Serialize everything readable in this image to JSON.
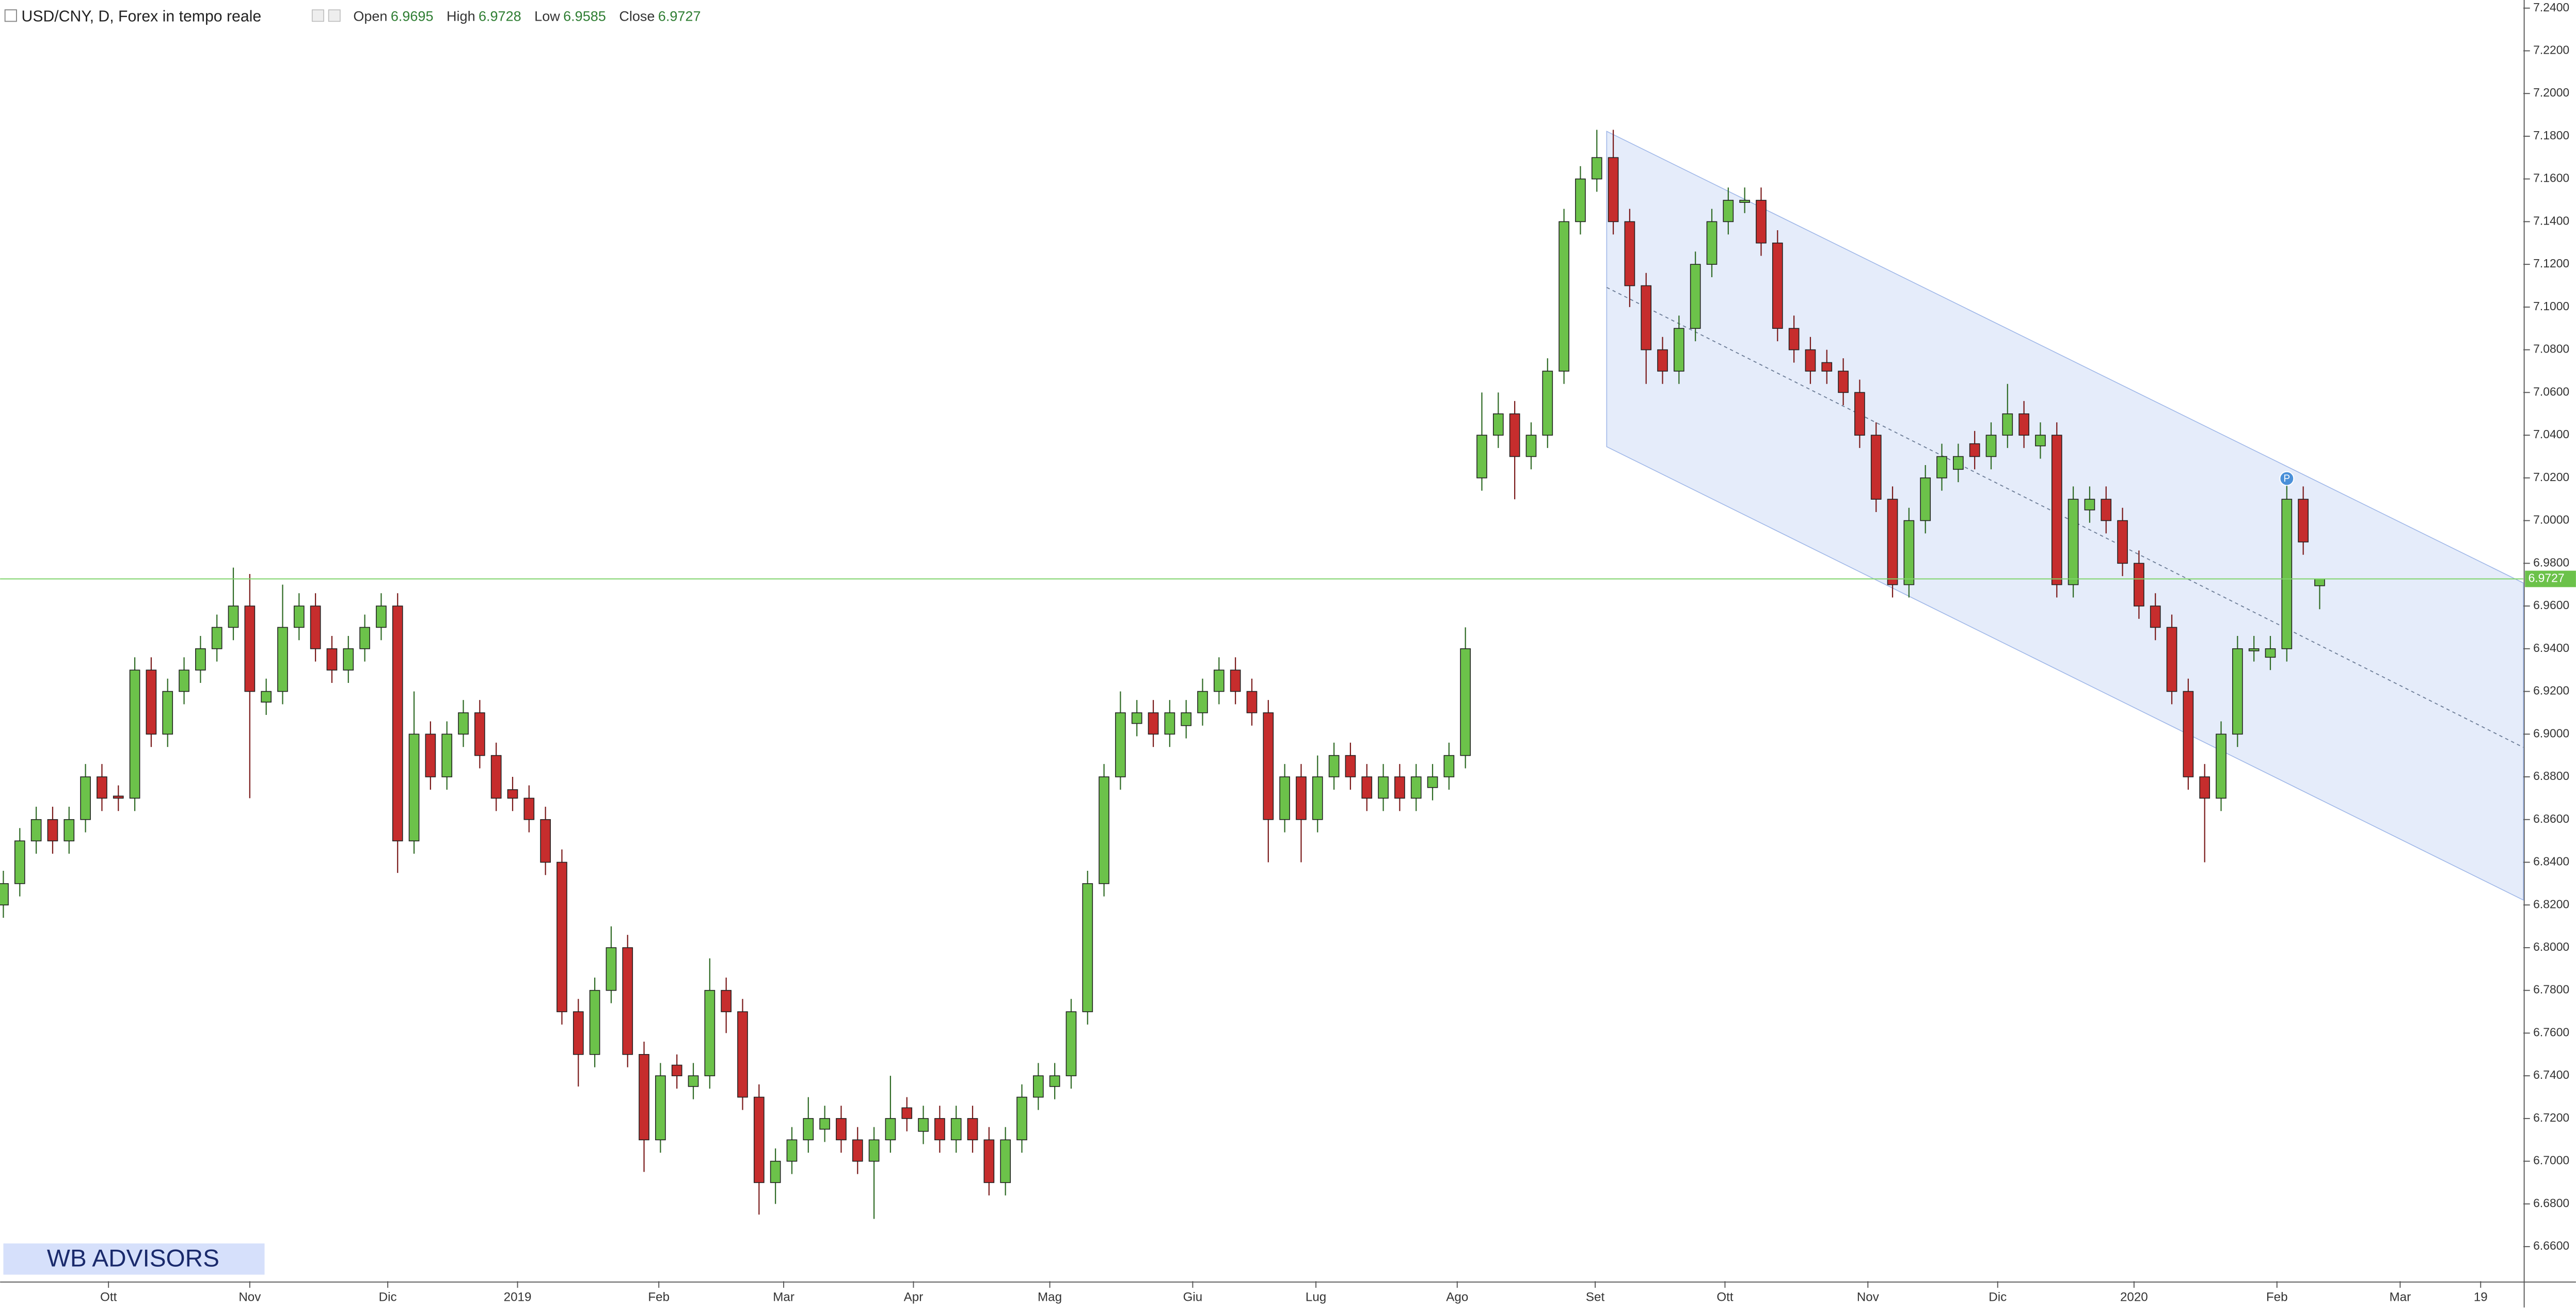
{
  "chart_data": {
    "type": "candlestick",
    "title": "USD/CNY, D, Forex in tempo reale",
    "ohlc_labels": [
      "Open",
      "High",
      "Low",
      "Close"
    ],
    "up_color": "#6cc24a",
    "down_color": "#c62d2d",
    "xlim": [
      -0.2,
      153.4
    ],
    "ylim": [
      6.6438,
      7.2438
    ],
    "xticks": [
      {
        "value": 6.4,
        "label": "Ott"
      },
      {
        "value": 15,
        "label": "Nov"
      },
      {
        "value": 23.4,
        "label": "Dic"
      },
      {
        "value": 31.3,
        "label": "2019"
      },
      {
        "value": 39.9,
        "label": "Feb"
      },
      {
        "value": 47.5,
        "label": "Mar"
      },
      {
        "value": 55.4,
        "label": "Apr"
      },
      {
        "value": 63.7,
        "label": "Mag"
      },
      {
        "value": 72.4,
        "label": "Giu"
      },
      {
        "value": 79.9,
        "label": "Lug"
      },
      {
        "value": 88.5,
        "label": "Ago"
      },
      {
        "value": 96.9,
        "label": "Set"
      },
      {
        "value": 104.8,
        "label": "Ott"
      },
      {
        "value": 113.5,
        "label": "Nov"
      },
      {
        "value": 121.4,
        "label": "Dic"
      },
      {
        "value": 129.7,
        "label": "2020"
      },
      {
        "value": 138.4,
        "label": "Feb"
      },
      {
        "value": 145.9,
        "label": "Mar"
      },
      {
        "value": 150.8,
        "label": "19"
      }
    ],
    "yticks": [
      {
        "value": 6.66,
        "label": "6.6600"
      },
      {
        "value": 6.68,
        "label": "6.6800"
      },
      {
        "value": 6.7,
        "label": "6.7000"
      },
      {
        "value": 6.72,
        "label": "6.7200"
      },
      {
        "value": 6.74,
        "label": "6.7400"
      },
      {
        "value": 6.76,
        "label": "6.7600"
      },
      {
        "value": 6.78,
        "label": "6.7800"
      },
      {
        "value": 6.8,
        "label": "6.8000"
      },
      {
        "value": 6.82,
        "label": "6.8200"
      },
      {
        "value": 6.84,
        "label": "6.8400"
      },
      {
        "value": 6.86,
        "label": "6.8600"
      },
      {
        "value": 6.88,
        "label": "6.8800"
      },
      {
        "value": 6.9,
        "label": "6.9000"
      },
      {
        "value": 6.92,
        "label": "6.9200"
      },
      {
        "value": 6.94,
        "label": "6.9400"
      },
      {
        "value": 6.96,
        "label": "6.9600"
      },
      {
        "value": 6.98,
        "label": "6.9800"
      },
      {
        "value": 7,
        "label": "7.0000"
      },
      {
        "value": 7.02,
        "label": "7.0200"
      },
      {
        "value": 7.04,
        "label": "7.0400"
      },
      {
        "value": 7.06,
        "label": "7.0600"
      },
      {
        "value": 7.08,
        "label": "7.0800"
      },
      {
        "value": 7.1,
        "label": "7.1000"
      },
      {
        "value": 7.12,
        "label": "7.1200"
      },
      {
        "value": 7.14,
        "label": "7.1400"
      },
      {
        "value": 7.16,
        "label": "7.1600"
      },
      {
        "value": 7.18,
        "label": "7.1800"
      },
      {
        "value": 7.2,
        "label": "7.2000"
      },
      {
        "value": 7.22,
        "label": "7.2200"
      },
      {
        "value": 7.24,
        "label": "7.2400"
      }
    ],
    "open": [
      6.82,
      6.83,
      6.85,
      6.86,
      6.85,
      6.86,
      6.88,
      6.871,
      6.87,
      6.93,
      6.9,
      6.92,
      6.93,
      6.94,
      6.95,
      6.96,
      6.915,
      6.92,
      6.95,
      6.96,
      6.94,
      6.93,
      6.94,
      6.95,
      6.96,
      6.85,
      6.9,
      6.88,
      6.9,
      6.91,
      6.89,
      6.874,
      6.87,
      6.86,
      6.84,
      6.77,
      6.75,
      6.78,
      6.8,
      6.75,
      6.71,
      6.745,
      6.735,
      6.74,
      6.78,
      6.77,
      6.73,
      6.69,
      6.7,
      6.71,
      6.715,
      6.72,
      6.71,
      6.7,
      6.71,
      6.725,
      6.714,
      6.72,
      6.71,
      6.72,
      6.71,
      6.69,
      6.71,
      6.73,
      6.735,
      6.74,
      6.77,
      6.83,
      6.88,
      6.905,
      6.91,
      6.9,
      6.904,
      6.91,
      6.92,
      6.93,
      6.92,
      6.91,
      6.86,
      6.88,
      6.86,
      6.88,
      6.89,
      6.88,
      6.87,
      6.88,
      6.87,
      6.875,
      6.88,
      6.89,
      7.02,
      7.04,
      7.05,
      7.03,
      7.04,
      7.07,
      7.14,
      7.16,
      7.17,
      7.14,
      7.11,
      7.08,
      7.07,
      7.09,
      7.12,
      7.14,
      7.149,
      7.15,
      7.13,
      7.09,
      7.08,
      7.074,
      7.07,
      7.06,
      7.04,
      7.01,
      6.97,
      7,
      7.02,
      7.024,
      7.036,
      7.03,
      7.04,
      7.05,
      7.035,
      7.04,
      6.97,
      7.005,
      7.01,
      7,
      6.98,
      6.96,
      6.95,
      6.92,
      6.88,
      6.87,
      6.9,
      6.939,
      6.936,
      6.94,
      7.01,
      6.9695
    ],
    "high": [
      6.836,
      6.856,
      6.866,
      6.866,
      6.866,
      6.886,
      6.886,
      6.876,
      6.936,
      6.936,
      6.926,
      6.936,
      6.946,
      6.956,
      6.978,
      6.975,
      6.926,
      6.97,
      6.966,
      6.966,
      6.946,
      6.946,
      6.956,
      6.966,
      6.966,
      6.92,
      6.906,
      6.906,
      6.916,
      6.916,
      6.896,
      6.88,
      6.876,
      6.866,
      6.846,
      6.776,
      6.786,
      6.81,
      6.806,
      6.756,
      6.746,
      6.75,
      6.746,
      6.795,
      6.786,
      6.776,
      6.736,
      6.706,
      6.716,
      6.73,
      6.726,
      6.726,
      6.716,
      6.716,
      6.74,
      6.73,
      6.726,
      6.726,
      6.726,
      6.726,
      6.716,
      6.716,
      6.736,
      6.746,
      6.746,
      6.776,
      6.836,
      6.886,
      6.92,
      6.916,
      6.916,
      6.916,
      6.916,
      6.926,
      6.936,
      6.936,
      6.926,
      6.916,
      6.886,
      6.886,
      6.89,
      6.896,
      6.896,
      6.886,
      6.886,
      6.886,
      6.886,
      6.886,
      6.896,
      6.95,
      7.06,
      7.06,
      7.056,
      7.046,
      7.076,
      7.146,
      7.166,
      7.183,
      7.183,
      7.146,
      7.116,
      7.086,
      7.096,
      7.126,
      7.146,
      7.156,
      7.156,
      7.156,
      7.136,
      7.096,
      7.086,
      7.08,
      7.076,
      7.066,
      7.046,
      7.016,
      7.006,
      7.026,
      7.036,
      7.036,
      7.042,
      7.046,
      7.064,
      7.056,
      7.046,
      7.046,
      7.016,
      7.016,
      7.016,
      7.006,
      6.986,
      6.966,
      6.956,
      6.926,
      6.886,
      6.906,
      6.946,
      6.946,
      6.946,
      7.022,
      7.016,
      6.9728
    ],
    "low": [
      6.814,
      6.824,
      6.844,
      6.844,
      6.844,
      6.854,
      6.864,
      6.864,
      6.864,
      6.894,
      6.894,
      6.914,
      6.924,
      6.934,
      6.944,
      6.87,
      6.909,
      6.914,
      6.944,
      6.934,
      6.924,
      6.924,
      6.934,
      6.944,
      6.835,
      6.844,
      6.874,
      6.874,
      6.894,
      6.884,
      6.864,
      6.864,
      6.854,
      6.834,
      6.764,
      6.735,
      6.744,
      6.774,
      6.744,
      6.695,
      6.704,
      6.734,
      6.729,
      6.734,
      6.76,
      6.724,
      6.675,
      6.68,
      6.694,
      6.704,
      6.709,
      6.704,
      6.694,
      6.673,
      6.704,
      6.714,
      6.708,
      6.704,
      6.704,
      6.704,
      6.684,
      6.684,
      6.704,
      6.724,
      6.729,
      6.734,
      6.764,
      6.824,
      6.874,
      6.899,
      6.894,
      6.894,
      6.898,
      6.904,
      6.914,
      6.914,
      6.904,
      6.84,
      6.854,
      6.84,
      6.854,
      6.874,
      6.874,
      6.864,
      6.864,
      6.864,
      6.864,
      6.869,
      6.874,
      6.884,
      7.014,
      7.034,
      7.01,
      7.024,
      7.034,
      7.064,
      7.134,
      7.154,
      7.134,
      7.1,
      7.064,
      7.064,
      7.064,
      7.084,
      7.114,
      7.134,
      7.144,
      7.124,
      7.084,
      7.074,
      7.064,
      7.064,
      7.054,
      7.034,
      7.004,
      6.964,
      6.964,
      6.994,
      7.014,
      7.018,
      7.024,
      7.024,
      7.034,
      7.034,
      7.029,
      6.964,
      6.964,
      6.999,
      6.994,
      6.974,
      6.954,
      6.944,
      6.914,
      6.874,
      6.84,
      6.864,
      6.894,
      6.934,
      6.93,
      6.934,
      6.984,
      6.9585
    ],
    "close": [
      6.83,
      6.85,
      6.86,
      6.85,
      6.86,
      6.88,
      6.87,
      6.87,
      6.93,
      6.9,
      6.92,
      6.93,
      6.94,
      6.95,
      6.96,
      6.92,
      6.92,
      6.95,
      6.96,
      6.94,
      6.93,
      6.94,
      6.95,
      6.96,
      6.85,
      6.9,
      6.88,
      6.9,
      6.91,
      6.89,
      6.87,
      6.87,
      6.86,
      6.84,
      6.77,
      6.75,
      6.78,
      6.8,
      6.75,
      6.71,
      6.74,
      6.74,
      6.74,
      6.78,
      6.77,
      6.73,
      6.69,
      6.7,
      6.71,
      6.72,
      6.72,
      6.71,
      6.7,
      6.71,
      6.72,
      6.72,
      6.72,
      6.71,
      6.72,
      6.71,
      6.69,
      6.71,
      6.73,
      6.74,
      6.74,
      6.77,
      6.83,
      6.88,
      6.91,
      6.91,
      6.9,
      6.91,
      6.91,
      6.92,
      6.93,
      6.92,
      6.91,
      6.86,
      6.88,
      6.86,
      6.88,
      6.89,
      6.88,
      6.87,
      6.88,
      6.87,
      6.88,
      6.88,
      6.89,
      6.94,
      7.04,
      7.05,
      7.03,
      7.04,
      7.07,
      7.14,
      7.16,
      7.17,
      7.14,
      7.11,
      7.08,
      7.07,
      7.09,
      7.12,
      7.14,
      7.15,
      7.15,
      7.13,
      7.09,
      7.08,
      7.07,
      7.07,
      7.06,
      7.04,
      7.01,
      6.97,
      7,
      7.02,
      7.03,
      7.03,
      7.03,
      7.04,
      7.05,
      7.04,
      7.04,
      6.97,
      7.01,
      7.01,
      7,
      6.98,
      6.96,
      6.95,
      6.92,
      6.88,
      6.87,
      6.9,
      6.94,
      6.94,
      6.94,
      7.01,
      6.99,
      6.9727
    ],
    "channel": {
      "upper": [
        [
          97.6,
          7.1823
        ],
        [
          153.4,
          6.9708
        ]
      ],
      "middle": [
        [
          97.6,
          7.1092
        ],
        [
          153.4,
          6.8938
        ]
      ],
      "lower": [
        [
          97.6,
          7.0346
        ],
        [
          153.4,
          6.8223
        ]
      ]
    },
    "marker": {
      "label": "P",
      "index": 139
    },
    "watermark": "WB ADVISORS"
  }
}
